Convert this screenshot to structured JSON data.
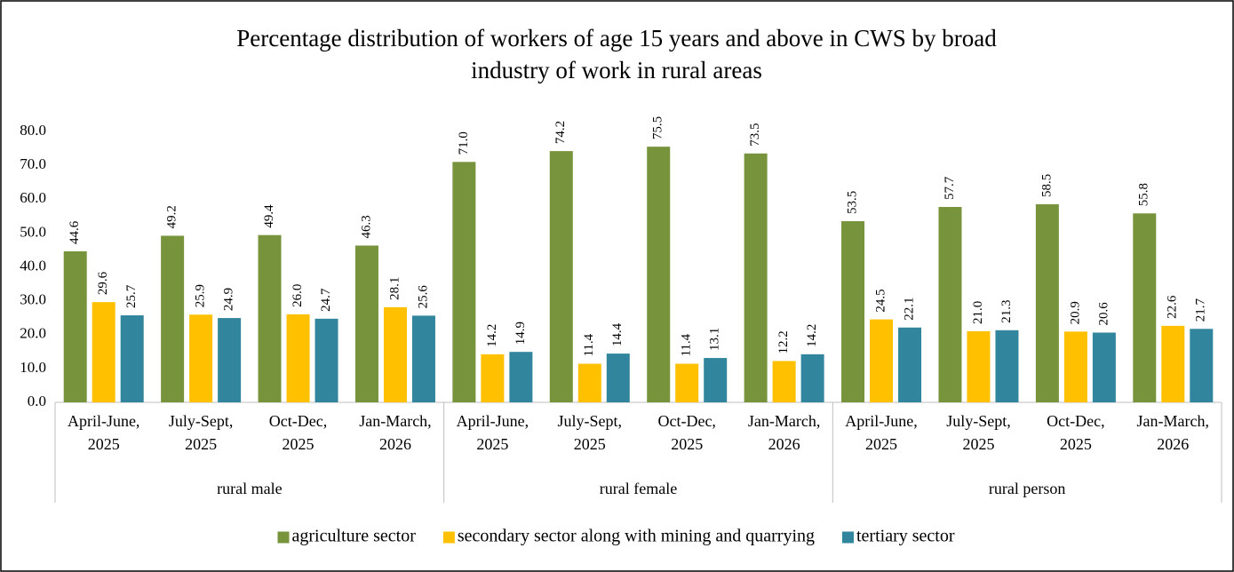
{
  "chart_data": {
    "type": "bar",
    "title": [
      "Percentage distribution of workers of age 15 years and above in CWS by broad",
      "industry of work in rural areas"
    ],
    "categories": [
      [
        "April-June,",
        "2025"
      ],
      [
        "July-Sept,",
        "2025"
      ],
      [
        "Oct-Dec,",
        "2025"
      ],
      [
        "Jan-March,",
        "2026"
      ],
      [
        "April-June,",
        "2025"
      ],
      [
        "July-Sept,",
        "2025"
      ],
      [
        "Oct-Dec,",
        "2025"
      ],
      [
        "Jan-March,",
        "2026"
      ],
      [
        "April-June,",
        "2025"
      ],
      [
        "July-Sept,",
        "2025"
      ],
      [
        "Oct-Dec,",
        "2025"
      ],
      [
        "Jan-March,",
        "2026"
      ]
    ],
    "groups": [
      "rural male",
      "rural female",
      "rural person"
    ],
    "series": [
      {
        "name": "agriculture sector",
        "color": "#77933c",
        "values": [
          44.6,
          49.2,
          49.4,
          46.3,
          71.0,
          74.2,
          75.5,
          73.5,
          53.5,
          57.7,
          58.5,
          55.8
        ],
        "value_labels": [
          "44.6",
          "49.2",
          "49.4",
          "46.3",
          "71.0",
          "74.2",
          "75.5",
          "73.5",
          "53.5",
          "57.7",
          "58.5",
          "55.8"
        ]
      },
      {
        "name": "secondary sector along with mining and quarrying",
        "color": "#ffc000",
        "values": [
          29.6,
          25.9,
          26.0,
          28.1,
          14.2,
          11.4,
          11.4,
          12.2,
          24.5,
          21.0,
          20.9,
          22.6
        ],
        "value_labels": [
          "29.6",
          "25.9",
          "26.0",
          "28.1",
          "14.2",
          "11.4",
          "11.4",
          "12.2",
          "24.5",
          "21.0",
          "20.9",
          "22.6"
        ]
      },
      {
        "name": "tertiary sector",
        "color": "#31859c",
        "values": [
          25.7,
          24.9,
          24.7,
          25.6,
          14.9,
          14.4,
          13.1,
          14.2,
          22.1,
          21.3,
          20.6,
          21.7
        ],
        "value_labels": [
          "25.7",
          "24.9",
          "24.7",
          "25.6",
          "14.9",
          "14.4",
          "13.1",
          "14.2",
          "22.1",
          "21.3",
          "20.6",
          "21.7"
        ]
      }
    ],
    "ylim": [
      0,
      80
    ],
    "yticks": [
      {
        "value": 0,
        "label": "0.0"
      },
      {
        "value": 10,
        "label": "10.0"
      },
      {
        "value": 20,
        "label": "20.0"
      },
      {
        "value": 30,
        "label": "30.0"
      },
      {
        "value": 40,
        "label": "40.0"
      },
      {
        "value": 50,
        "label": "50.0"
      },
      {
        "value": 60,
        "label": "60.0"
      },
      {
        "value": 70,
        "label": "70.0"
      },
      {
        "value": 80,
        "label": "80.0"
      }
    ],
    "grid": false,
    "legend": "bottom"
  }
}
